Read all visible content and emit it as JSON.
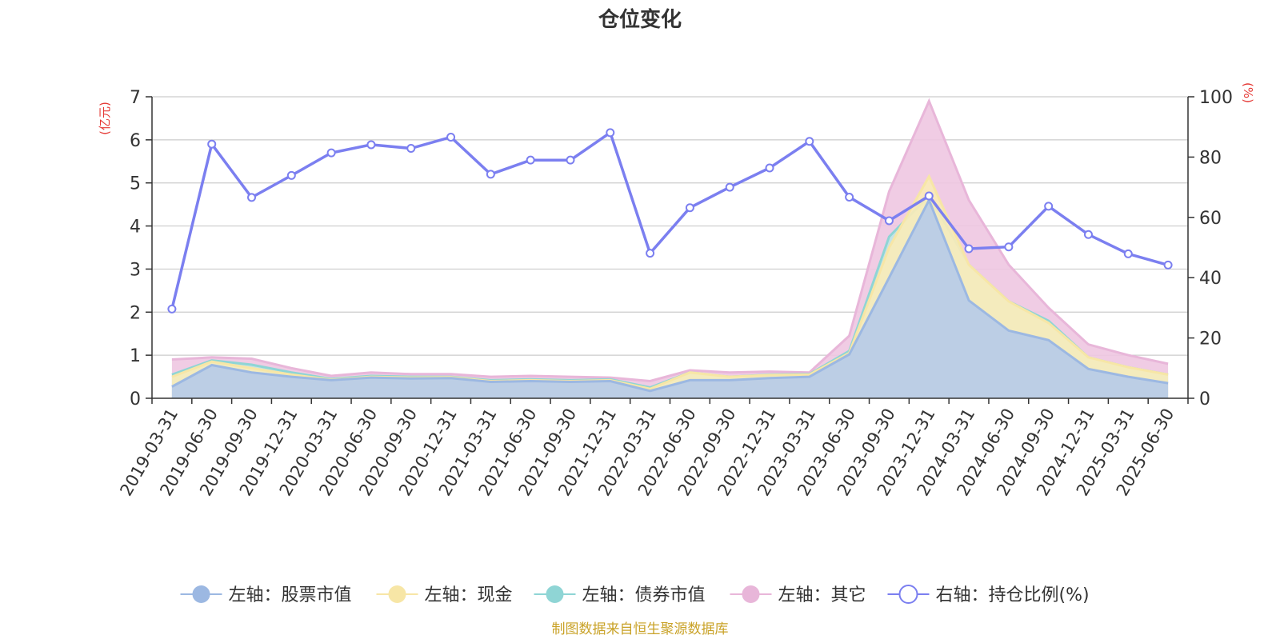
{
  "chart_data": {
    "type": "area",
    "title": "仓位变化",
    "left_axis_unit": "(亿元)",
    "right_axis_unit": "(%)",
    "source": "制图数据来自恒生聚源数据库",
    "categories": [
      "2019-03-31",
      "2019-06-30",
      "2019-09-30",
      "2019-12-31",
      "2020-03-31",
      "2020-06-30",
      "2020-09-30",
      "2020-12-31",
      "2021-03-31",
      "2021-06-30",
      "2021-09-30",
      "2021-12-31",
      "2022-03-31",
      "2022-06-30",
      "2022-09-30",
      "2022-12-31",
      "2023-03-31",
      "2023-06-30",
      "2023-09-30",
      "2023-12-31",
      "2024-03-31",
      "2024-06-30",
      "2024-09-30",
      "2024-12-31",
      "2025-03-31",
      "2025-06-30"
    ],
    "ylim_left": [
      0,
      7
    ],
    "yticks_left": [
      0,
      1,
      2,
      3,
      4,
      5,
      6,
      7
    ],
    "ylim_right": [
      0,
      100
    ],
    "yticks_right": [
      0,
      20,
      40,
      60,
      80,
      100
    ],
    "grid": true,
    "legend_position": "bottom",
    "series": [
      {
        "name": "左轴：股票市值",
        "axis": "left",
        "kind": "area",
        "color": "#9cb8e2",
        "fill": "#b6cbe9",
        "values": [
          0.27,
          0.77,
          0.6,
          0.5,
          0.42,
          0.48,
          0.46,
          0.47,
          0.38,
          0.4,
          0.38,
          0.4,
          0.17,
          0.42,
          0.42,
          0.47,
          0.5,
          1.02,
          2.8,
          4.6,
          2.27,
          1.57,
          1.35,
          0.68,
          0.5,
          0.35
        ]
      },
      {
        "name": "左轴：现金",
        "axis": "left",
        "kind": "area",
        "color": "#f7e6a6",
        "fill": "#faebb8",
        "values": [
          0.5,
          0.85,
          0.7,
          0.55,
          0.43,
          0.5,
          0.48,
          0.49,
          0.4,
          0.42,
          0.4,
          0.42,
          0.22,
          0.6,
          0.5,
          0.54,
          0.55,
          1.05,
          3.5,
          5.15,
          3.1,
          2.25,
          1.75,
          0.95,
          0.72,
          0.55
        ]
      },
      {
        "name": "左轴：债券市值",
        "axis": "left",
        "kind": "area",
        "color": "#8fd5d5",
        "fill": "#bfe6e6",
        "values": [
          0.55,
          0.88,
          0.78,
          0.6,
          0.45,
          0.52,
          0.5,
          0.5,
          0.42,
          0.44,
          0.42,
          0.44,
          0.25,
          0.6,
          0.5,
          0.55,
          0.56,
          1.1,
          3.75,
          4.7,
          3.1,
          2.25,
          1.8,
          0.95,
          0.72,
          0.55
        ]
      },
      {
        "name": "左轴：其它",
        "axis": "left",
        "kind": "area",
        "color": "#e8b6d9",
        "fill": "#eec6e1",
        "values": [
          0.9,
          0.95,
          0.92,
          0.7,
          0.52,
          0.6,
          0.56,
          0.56,
          0.5,
          0.52,
          0.5,
          0.48,
          0.4,
          0.65,
          0.6,
          0.62,
          0.6,
          1.45,
          4.8,
          6.9,
          4.6,
          3.1,
          2.1,
          1.25,
          1.0,
          0.8
        ]
      },
      {
        "name": "右轴：持仓比例(%)",
        "axis": "right",
        "kind": "line",
        "color": "#7b7ff0",
        "values": [
          29.6,
          84.3,
          66.6,
          73.9,
          81.4,
          84.1,
          82.9,
          86.6,
          74.3,
          79.0,
          79.0,
          88.1,
          48.1,
          63.2,
          70.0,
          76.4,
          85.2,
          66.7,
          58.9,
          67.1,
          49.6,
          50.2,
          63.7,
          54.3,
          47.9,
          44.2
        ]
      }
    ]
  }
}
